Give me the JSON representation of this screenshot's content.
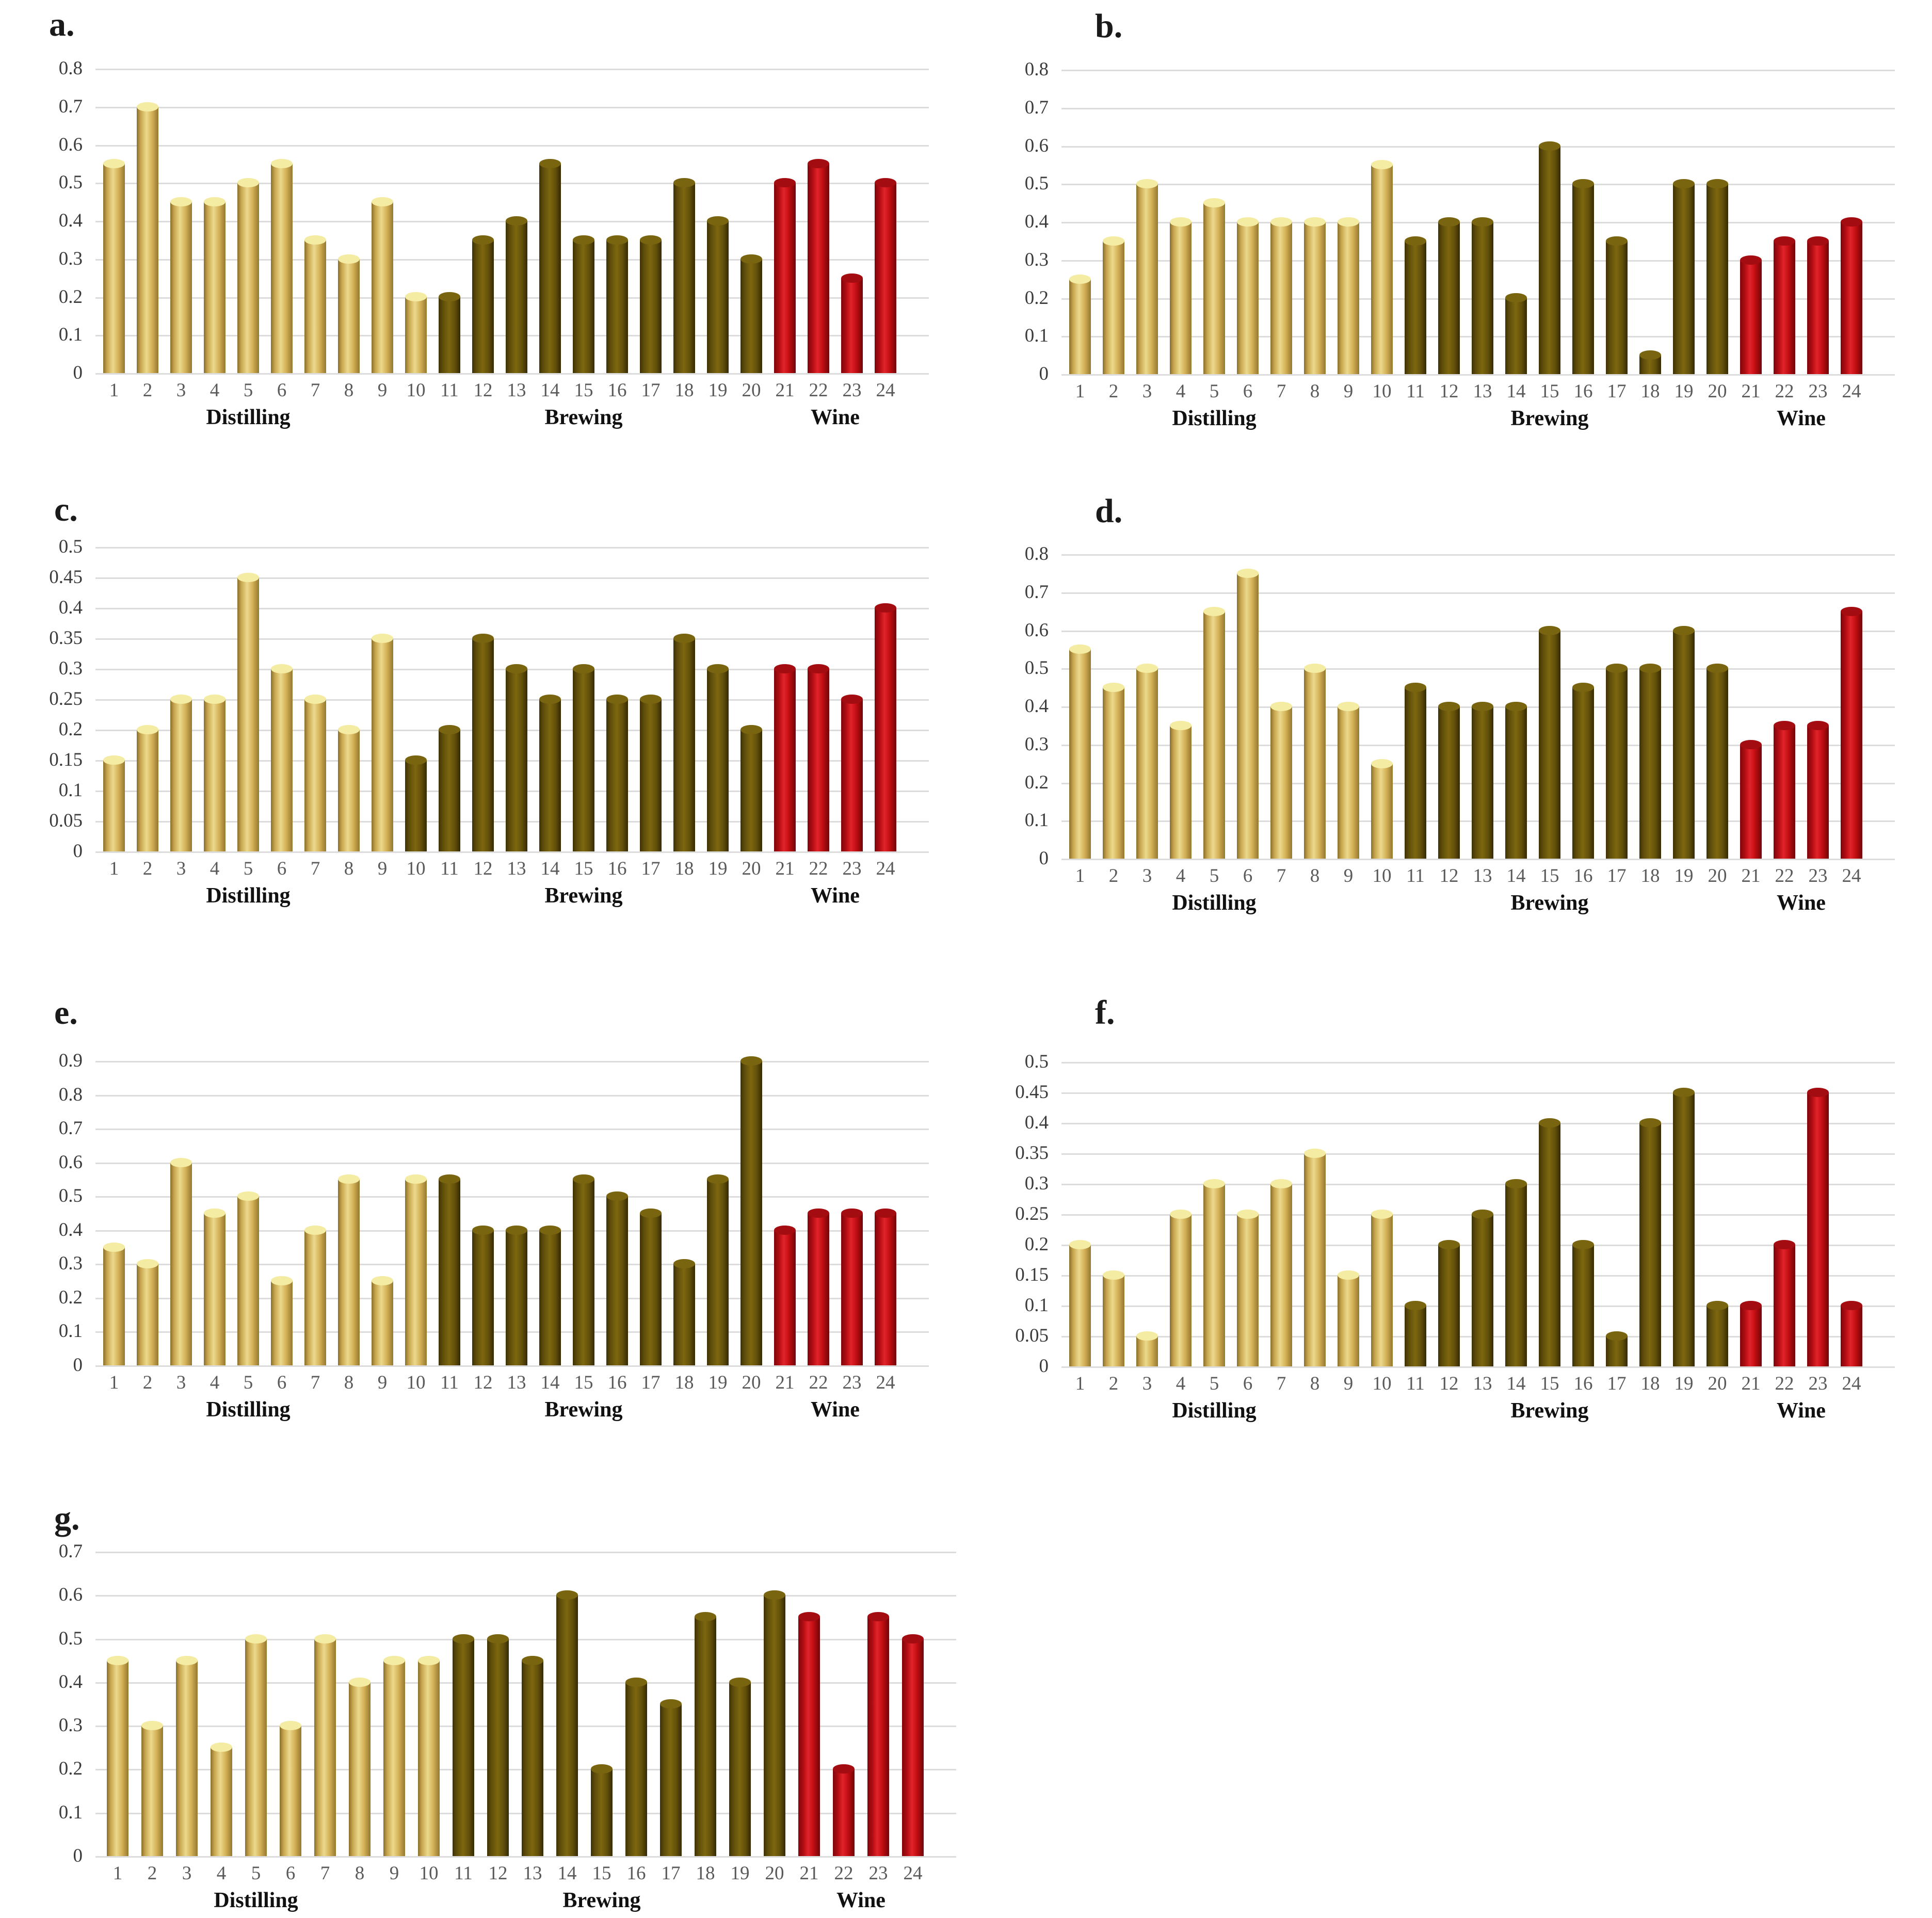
{
  "figure": {
    "description": "Seven bar chart panels (a-g), 24 numbered samples each, grouped as Distilling, Brewing and Wine",
    "background": "#ffffff"
  },
  "palette": {
    "tan": "#C9A850",
    "dark_olive": "#6B570B",
    "red": "#C00D12",
    "gridline": "#dcdcdc",
    "y_tick_text": "#3c3c3c",
    "x_tick_text": "#5a5a5a",
    "group_label_text": "#111111"
  },
  "categories": [
    "1",
    "2",
    "3",
    "4",
    "5",
    "6",
    "7",
    "8",
    "9",
    "10",
    "11",
    "12",
    "13",
    "14",
    "15",
    "16",
    "17",
    "18",
    "19",
    "20",
    "21",
    "22",
    "23",
    "24"
  ],
  "group_labels": [
    "Distilling",
    "Brewing",
    "Wine"
  ],
  "chart_data": [
    {
      "type": "bar",
      "letter": "a.",
      "ylim": [
        0,
        0.8
      ],
      "ytick_labels": [
        "0.8",
        "0.7",
        "0.6",
        "0.5",
        "0.4",
        "0.3",
        "0.2",
        "0.1",
        "0"
      ],
      "grid": true,
      "values": [
        0.55,
        0.7,
        0.45,
        0.45,
        0.5,
        0.55,
        0.35,
        0.3,
        0.45,
        0.2,
        0.2,
        0.35,
        0.4,
        0.55,
        0.35,
        0.35,
        0.35,
        0.5,
        0.4,
        0.3,
        0.5,
        0.55,
        0.25,
        0.5
      ],
      "segments": [
        {
          "color": "tan",
          "from": 1,
          "to": 10
        },
        {
          "color": "dark",
          "from": 11,
          "to": 20
        },
        {
          "color": "red",
          "from": 21,
          "to": 24
        }
      ],
      "groups": [
        {
          "label": "Distilling",
          "at_bar": 5
        },
        {
          "label": "Brewing",
          "at_bar": 15
        },
        {
          "label": "Wine",
          "at_bar": 22.5
        }
      ]
    },
    {
      "type": "bar",
      "letter": "b.",
      "ylim": [
        0,
        0.8
      ],
      "ytick_labels": [
        "0.8",
        "0.7",
        "0.6",
        "0.5",
        "0.4",
        "0.3",
        "0.2",
        "0.1",
        "0"
      ],
      "grid": true,
      "values": [
        0.25,
        0.35,
        0.5,
        0.4,
        0.45,
        0.4,
        0.4,
        0.4,
        0.4,
        0.55,
        0.35,
        0.4,
        0.4,
        0.2,
        0.6,
        0.5,
        0.35,
        0.05,
        0.5,
        0.5,
        0.3,
        0.35,
        0.35,
        0.4
      ],
      "segments": [
        {
          "color": "tan",
          "from": 1,
          "to": 10
        },
        {
          "color": "dark",
          "from": 11,
          "to": 20
        },
        {
          "color": "red",
          "from": 21,
          "to": 24
        }
      ],
      "groups": [
        {
          "label": "Distilling",
          "at_bar": 5
        },
        {
          "label": "Brewing",
          "at_bar": 15
        },
        {
          "label": "Wine",
          "at_bar": 22.5
        }
      ]
    },
    {
      "type": "bar",
      "letter": "c.",
      "ylim": [
        0,
        0.5
      ],
      "ytick_labels": [
        "0.5",
        "0.45",
        "0.4",
        "0.35",
        "0.3",
        "0.25",
        "0.2",
        "0.15",
        "0.1",
        "0.05",
        "0"
      ],
      "grid": true,
      "values": [
        0.15,
        0.2,
        0.25,
        0.25,
        0.45,
        0.3,
        0.25,
        0.2,
        0.35,
        0.15,
        0.2,
        0.35,
        0.3,
        0.25,
        0.3,
        0.25,
        0.25,
        0.35,
        0.3,
        0.2,
        0.3,
        0.3,
        0.25,
        0.4
      ],
      "segments": [
        {
          "color": "tan",
          "from": 1,
          "to": 9
        },
        {
          "color": "dark",
          "from": 10,
          "to": 20
        },
        {
          "color": "red",
          "from": 21,
          "to": 24
        }
      ],
      "groups": [
        {
          "label": "Distilling",
          "at_bar": 5
        },
        {
          "label": "Brewing",
          "at_bar": 15
        },
        {
          "label": "Wine",
          "at_bar": 22.5
        }
      ]
    },
    {
      "type": "bar",
      "letter": "d.",
      "ylim": [
        0,
        0.8
      ],
      "ytick_labels": [
        "0.8",
        "0.7",
        "0.6",
        "0.5",
        "0.4",
        "0.3",
        "0.2",
        "0.1",
        "0"
      ],
      "grid": true,
      "values": [
        0.55,
        0.45,
        0.5,
        0.35,
        0.65,
        0.75,
        0.4,
        0.5,
        0.4,
        0.25,
        0.45,
        0.4,
        0.4,
        0.4,
        0.6,
        0.45,
        0.5,
        0.5,
        0.6,
        0.5,
        0.3,
        0.35,
        0.35,
        0.65
      ],
      "segments": [
        {
          "color": "tan",
          "from": 1,
          "to": 10
        },
        {
          "color": "dark",
          "from": 11,
          "to": 20
        },
        {
          "color": "red",
          "from": 21,
          "to": 24
        }
      ],
      "groups": [
        {
          "label": "Distilling",
          "at_bar": 5
        },
        {
          "label": "Brewing",
          "at_bar": 15
        },
        {
          "label": "Wine",
          "at_bar": 22.5
        }
      ]
    },
    {
      "type": "bar",
      "letter": "e.",
      "ylim": [
        0,
        0.9
      ],
      "ytick_labels": [
        "0.9",
        "0.8",
        "0.7",
        "0.6",
        "0.5",
        "0.4",
        "0.3",
        "0.2",
        "0.1",
        "0"
      ],
      "grid": true,
      "values": [
        0.35,
        0.3,
        0.6,
        0.45,
        0.5,
        0.25,
        0.4,
        0.55,
        0.25,
        0.55,
        0.55,
        0.4,
        0.4,
        0.4,
        0.55,
        0.5,
        0.45,
        0.3,
        0.55,
        0.9,
        0.4,
        0.45,
        0.45,
        0.45
      ],
      "segments": [
        {
          "color": "tan",
          "from": 1,
          "to": 10
        },
        {
          "color": "dark",
          "from": 11,
          "to": 20
        },
        {
          "color": "red",
          "from": 21,
          "to": 24
        }
      ],
      "groups": [
        {
          "label": "Distilling",
          "at_bar": 5
        },
        {
          "label": "Brewing",
          "at_bar": 15
        },
        {
          "label": "Wine",
          "at_bar": 22.5
        }
      ]
    },
    {
      "type": "bar",
      "letter": "f.",
      "ylim": [
        0,
        0.5
      ],
      "ytick_labels": [
        "0.5",
        "0.45",
        "0.4",
        "0.35",
        "0.3",
        "0.25",
        "0.2",
        "0.15",
        "0.1",
        "0.05",
        "0"
      ],
      "grid": true,
      "values": [
        0.2,
        0.15,
        0.05,
        0.25,
        0.3,
        0.25,
        0.3,
        0.35,
        0.15,
        0.25,
        0.1,
        0.2,
        0.25,
        0.3,
        0.4,
        0.2,
        0.05,
        0.4,
        0.45,
        0.1,
        0.1,
        0.2,
        0.45,
        0.1
      ],
      "segments": [
        {
          "color": "tan",
          "from": 1,
          "to": 10
        },
        {
          "color": "dark",
          "from": 11,
          "to": 20
        },
        {
          "color": "red",
          "from": 21,
          "to": 24
        }
      ],
      "groups": [
        {
          "label": "Distilling",
          "at_bar": 5
        },
        {
          "label": "Brewing",
          "at_bar": 15
        },
        {
          "label": "Wine",
          "at_bar": 22.5
        }
      ]
    },
    {
      "type": "bar",
      "letter": "g.",
      "ylim": [
        0,
        0.7
      ],
      "ytick_labels": [
        "0.7",
        "0.6",
        "0.5",
        "0.4",
        "0.3",
        "0.2",
        "0.1",
        "0"
      ],
      "grid": true,
      "values": [
        0.45,
        0.3,
        0.45,
        0.25,
        0.5,
        0.3,
        0.5,
        0.4,
        0.45,
        0.45,
        0.5,
        0.5,
        0.45,
        0.6,
        0.2,
        0.4,
        0.35,
        0.55,
        0.4,
        0.6,
        0.55,
        0.2,
        0.55,
        0.5
      ],
      "segments": [
        {
          "color": "tan",
          "from": 1,
          "to": 10
        },
        {
          "color": "dark",
          "from": 11,
          "to": 20
        },
        {
          "color": "red",
          "from": 21,
          "to": 24
        }
      ],
      "groups": [
        {
          "label": "Distilling",
          "at_bar": 5
        },
        {
          "label": "Brewing",
          "at_bar": 15
        },
        {
          "label": "Wine",
          "at_bar": 22.5
        }
      ]
    }
  ]
}
